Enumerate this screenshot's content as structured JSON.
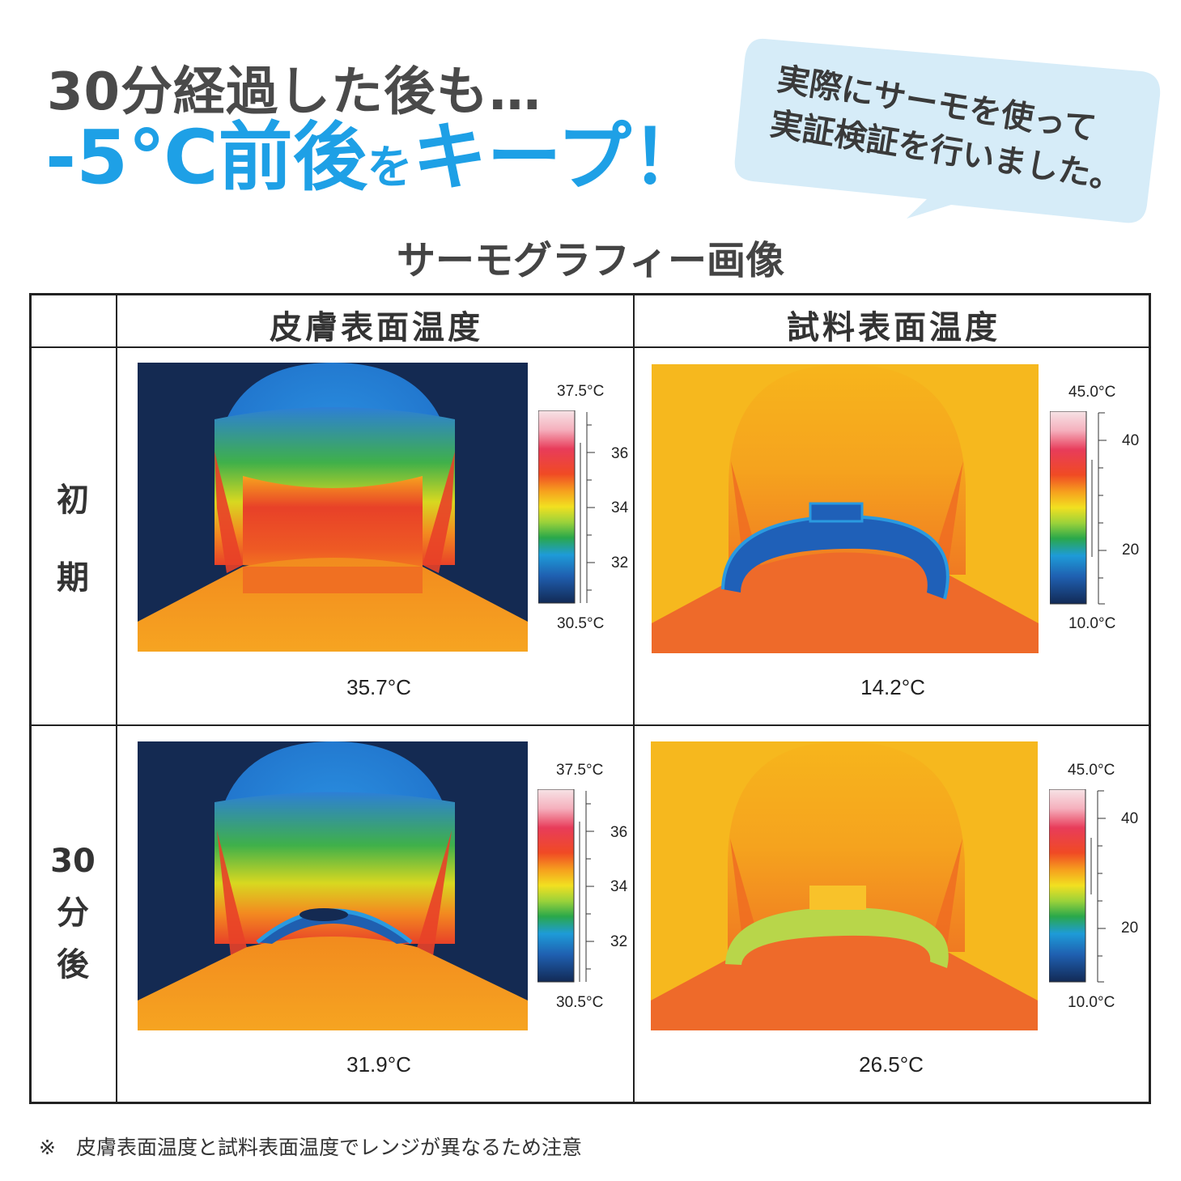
{
  "headline": {
    "line1": "30分経過した後も…",
    "line2_a": "-5℃前後",
    "line2_b": "を",
    "line2_c": "キープ！"
  },
  "bubble": {
    "line1": "実際にサーモを使って",
    "line2": "実証検証を行いました。"
  },
  "subtitle": "サーモグラフィー画像",
  "table": {
    "col1": "皮膚表面温度",
    "col2": "試料表面温度",
    "rows": [
      {
        "label": [
          "初",
          "期"
        ],
        "skin": {
          "max": "37.5°C",
          "min": "30.5°C",
          "ticks": [
            "36",
            "34",
            "32"
          ],
          "reading": "35.7°C"
        },
        "sample": {
          "max": "45.0°C",
          "min": "10.0°C",
          "ticks": [
            "40",
            "20"
          ],
          "reading": "14.2°C"
        }
      },
      {
        "label": [
          "30",
          "分",
          "後"
        ],
        "skin": {
          "max": "37.5°C",
          "min": "30.5°C",
          "ticks": [
            "36",
            "34",
            "32"
          ],
          "reading": "31.9°C"
        },
        "sample": {
          "max": "45.0°C",
          "min": "10.0°C",
          "ticks": [
            "40",
            "20"
          ],
          "reading": "26.5°C"
        }
      }
    ]
  },
  "footnote": "※　皮膚表面温度と試料表面温度でレンジが異なるため注意",
  "colors": {
    "accent": "#1ea0e6",
    "bubble": "#d6ecf8"
  }
}
